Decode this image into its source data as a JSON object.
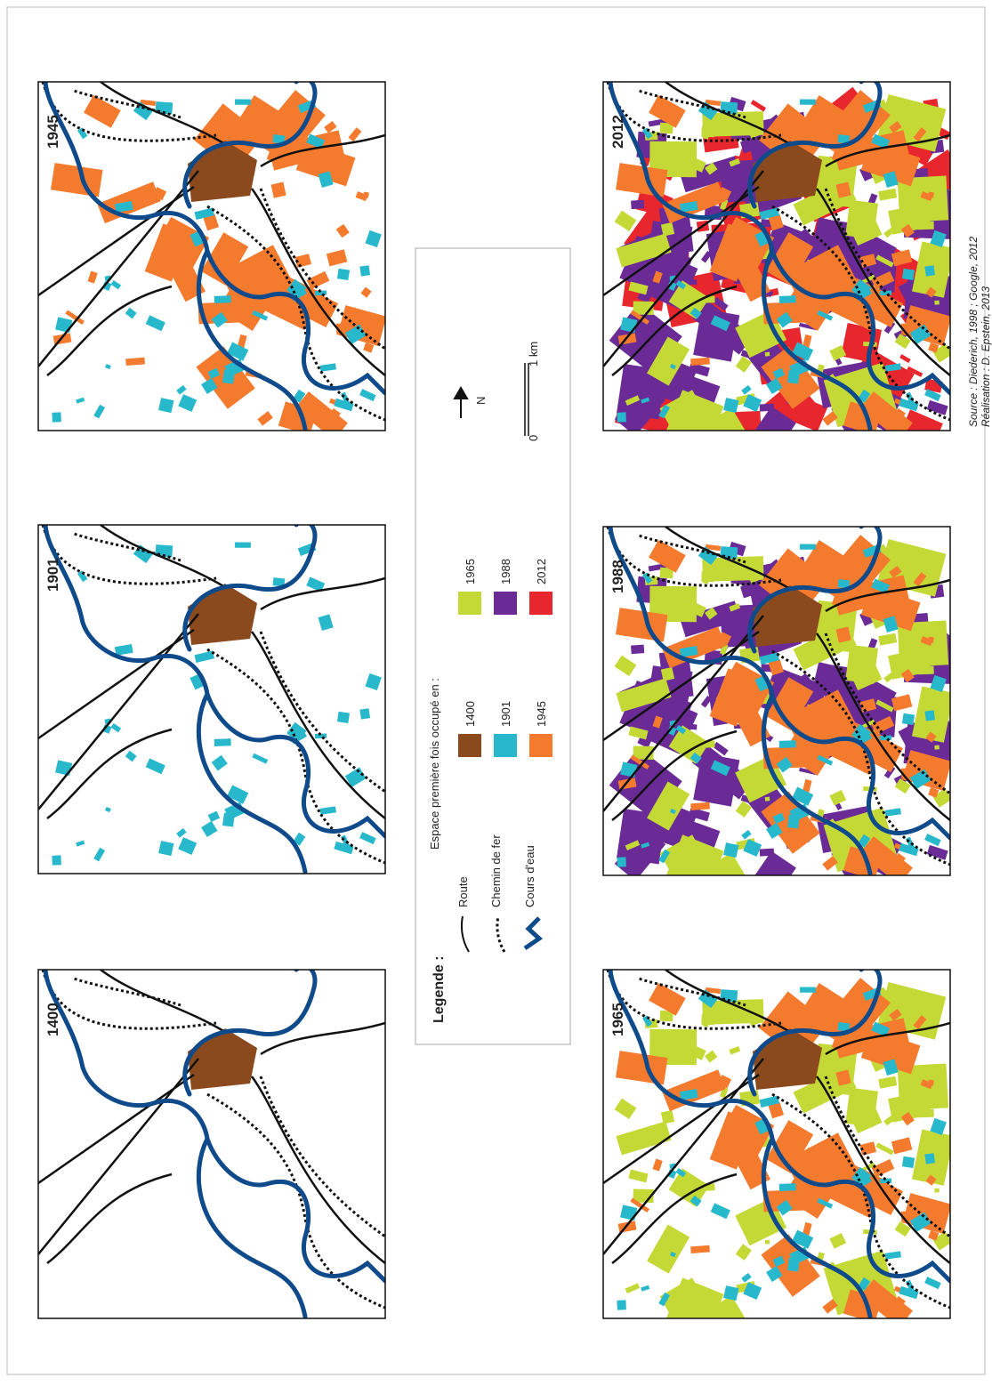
{
  "panels": [
    {
      "label": "1400"
    },
    {
      "label": "1901"
    },
    {
      "label": "1945"
    },
    {
      "label": "1965"
    },
    {
      "label": "1988"
    },
    {
      "label": "2012"
    }
  ],
  "legend": {
    "title": "Legende :",
    "lines": [
      "Route",
      "Chemin de fer",
      "Cours d'eau"
    ],
    "occupation_title": "Espace première fois occupé en :",
    "classes": [
      {
        "label": "1400",
        "color": "#8a4a1e"
      },
      {
        "label": "1901",
        "color": "#27b8cc"
      },
      {
        "label": "1945",
        "color": "#f47a2e"
      },
      {
        "label": "1965",
        "color": "#c5d936"
      },
      {
        "label": "1988",
        "color": "#6a2b96"
      },
      {
        "label": "2012",
        "color": "#e8262d"
      }
    ]
  },
  "scale": {
    "north": "N",
    "start": "0",
    "end": "1 km"
  },
  "source": [
    "Source : Diederich, 1998 ; Google, 2012",
    "Réalisation : D. Epstein, 2013"
  ]
}
